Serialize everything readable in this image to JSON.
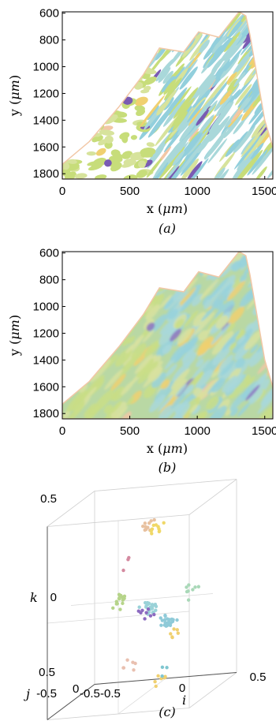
{
  "chart_data": [
    {
      "id": "a",
      "type": "map",
      "caption": "(a)",
      "xlabel_prefix": "x (",
      "xlabel_unit": "μm",
      "xlabel_suffix": ")",
      "ylabel_prefix": "y (",
      "ylabel_unit": "μm",
      "ylabel_suffix": ")",
      "xlim": [
        0,
        1560
      ],
      "ylim": [
        1840,
        590
      ],
      "xticks": [
        0,
        500,
        1000,
        1500
      ],
      "yticks": [
        600,
        800,
        1000,
        1200,
        1400,
        1600,
        1800
      ],
      "style": "grains",
      "colors": [
        "#c7dd7a",
        "#d5e29a",
        "#a9d8da",
        "#8fd0dc",
        "#b5d67e",
        "#e6d98a",
        "#f0d070",
        "#7a5bb3",
        "#9b86c9",
        "#f2c7a6",
        "#e9b7c0"
      ]
    },
    {
      "id": "b",
      "type": "map",
      "caption": "(b)",
      "xlabel_prefix": "x (",
      "xlabel_unit": "μm",
      "xlabel_suffix": ")",
      "ylabel_prefix": "y (",
      "ylabel_unit": "μm",
      "ylabel_suffix": ")",
      "xlim": [
        0,
        1560
      ],
      "ylim": [
        1840,
        590
      ],
      "xticks": [
        0,
        500,
        1000,
        1500
      ],
      "yticks": [
        600,
        800,
        1000,
        1200,
        1400,
        1600,
        1800
      ],
      "style": "smooth",
      "colors": [
        "#c7dd7a",
        "#d5e29a",
        "#a9d8da",
        "#8fd0dc",
        "#b5d67e",
        "#e6d98a",
        "#f0d070",
        "#7a5bb3",
        "#9b86c9",
        "#f2c7a6",
        "#e9b7c0"
      ]
    },
    {
      "id": "c",
      "type": "scatter3d",
      "caption": "(c)",
      "xlabel": "i",
      "ylabel": "j",
      "zlabel": "k",
      "xlim": [
        -0.5,
        0.5
      ],
      "ylim": [
        -0.5,
        0.5
      ],
      "zlim": [
        -0.5,
        0.5
      ],
      "xtick_labels": [
        "-0.5",
        "0",
        "0.5"
      ],
      "ytick_labels": [
        "-0.5",
        "0",
        "0.5"
      ],
      "ztick_labels": [
        "-0.5",
        "0",
        "0.5"
      ],
      "clusters": [
        {
          "cx": 0.05,
          "cy": 0.38,
          "n": 10,
          "color": "#e8c1a0"
        },
        {
          "cx": 0.12,
          "cy": 0.36,
          "n": 10,
          "color": "#f0d868"
        },
        {
          "cx": -0.15,
          "cy": 0.0,
          "n": 16,
          "color": "#b6d48a"
        },
        {
          "cx": 0.05,
          "cy": -0.05,
          "n": 26,
          "color": "#9ad2d8"
        },
        {
          "cx": 0.18,
          "cy": -0.12,
          "n": 24,
          "color": "#8fcad8"
        },
        {
          "cx": 0.02,
          "cy": -0.08,
          "n": 8,
          "color": "#8c6bc0"
        },
        {
          "cx": 0.22,
          "cy": -0.18,
          "n": 6,
          "color": "#f0d070"
        },
        {
          "cx": 0.33,
          "cy": 0.02,
          "n": 8,
          "color": "#a9d8b8"
        },
        {
          "cx": -0.1,
          "cy": -0.35,
          "n": 6,
          "color": "#e9c0b0"
        },
        {
          "cx": 0.12,
          "cy": -0.42,
          "n": 6,
          "color": "#f0d070"
        },
        {
          "cx": 0.18,
          "cy": -0.38,
          "n": 3,
          "color": "#7fc6d0"
        },
        {
          "cx": -0.1,
          "cy": 0.2,
          "n": 3,
          "color": "#d48aa0"
        }
      ]
    }
  ]
}
